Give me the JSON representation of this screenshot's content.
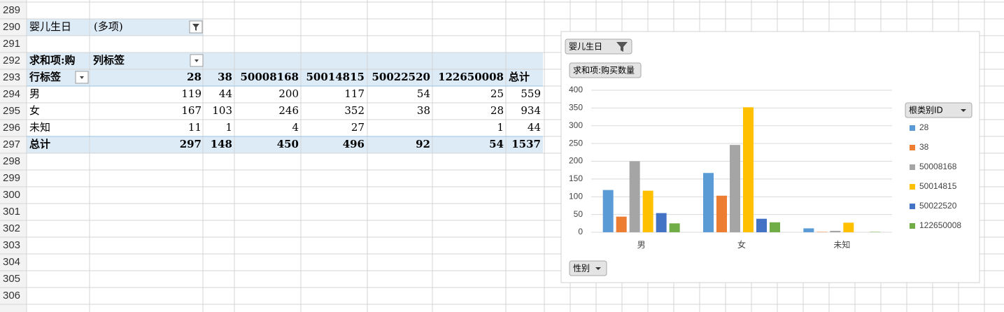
{
  "row_numbers": [
    289,
    290,
    291,
    292,
    293,
    294,
    295,
    296,
    297,
    298,
    299,
    300,
    301,
    302,
    303,
    304,
    305,
    306
  ],
  "filter": {
    "label": "婴儿生日",
    "value": "(多项)"
  },
  "pivot": {
    "value_header": "求和项:购",
    "column_header": "列标签",
    "row_header": "行标签",
    "columns": [
      28,
      38,
      50008168,
      50014815,
      50022520,
      122650008
    ],
    "total_header": "总计",
    "rows": [
      {
        "label": "男",
        "values": [
          119,
          44,
          200,
          117,
          54,
          25
        ],
        "total": 559
      },
      {
        "label": "女",
        "values": [
          167,
          103,
          246,
          352,
          38,
          28
        ],
        "total": 934
      },
      {
        "label": "未知",
        "values": [
          11,
          1,
          4,
          27,
          null,
          1
        ],
        "total": 44
      }
    ],
    "grand_total": {
      "label": "总计",
      "values": [
        297,
        148,
        450,
        496,
        92,
        54
      ],
      "total": 1537
    }
  },
  "chart_data": {
    "type": "bar",
    "filter_button": "婴儿生日",
    "value_button": "求和项:购买数量",
    "legend_title": "根类别ID",
    "axis_button": "性别",
    "categories": [
      "男",
      "女",
      "未知"
    ],
    "series": [
      {
        "name": "28",
        "color": "#5b9bd5",
        "values": [
          119,
          167,
          11
        ]
      },
      {
        "name": "38",
        "color": "#ed7d31",
        "values": [
          44,
          103,
          1
        ]
      },
      {
        "name": "50008168",
        "color": "#a5a5a5",
        "values": [
          200,
          246,
          4
        ]
      },
      {
        "name": "50014815",
        "color": "#ffc000",
        "values": [
          117,
          352,
          27
        ]
      },
      {
        "name": "50022520",
        "color": "#4472c4",
        "values": [
          54,
          38,
          null
        ]
      },
      {
        "name": "122650008",
        "color": "#70ad47",
        "values": [
          25,
          28,
          1
        ]
      }
    ],
    "ylim": [
      0,
      400
    ],
    "yticks": [
      0,
      50,
      100,
      150,
      200,
      250,
      300,
      350,
      400
    ],
    "grid": true
  }
}
